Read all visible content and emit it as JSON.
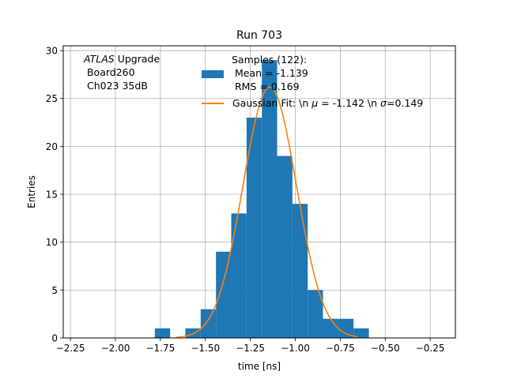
{
  "chart_data": {
    "type": "bar",
    "title": "Run 703",
    "xlabel": "time [ns]",
    "ylabel": "Entries",
    "xlim": [
      -2.29,
      -0.11
    ],
    "ylim": [
      0,
      30.5
    ],
    "xticks": [
      -2.25,
      -2.0,
      -1.75,
      -1.5,
      -1.25,
      -1.0,
      -0.75,
      -0.5,
      -0.25
    ],
    "xtick_labels": [
      "−2.25",
      "−2.00",
      "−1.75",
      "−1.50",
      "−1.25",
      "−1.00",
      "−0.75",
      "−0.50",
      "−0.25"
    ],
    "yticks": [
      0,
      5,
      10,
      15,
      20,
      25,
      30
    ],
    "ytick_labels": [
      "0",
      "5",
      "10",
      "15",
      "20",
      "25",
      "30"
    ],
    "grid": true,
    "legend_position": "upper-center",
    "annotation": {
      "lines": [
        {
          "italic": "ATLAS",
          "text": " Upgrade"
        },
        {
          "italic": "",
          "text": " Board260"
        },
        {
          "italic": "",
          "text": " Ch023 35dB"
        }
      ]
    },
    "histogram": {
      "name": "Samples (122):",
      "name_lines": [
        "Samples (122):",
        " Mean = -1.139",
        " RMS = 0.169"
      ],
      "color": "#1f77b4",
      "bin_edges": [
        -1.781,
        -1.696,
        -1.611,
        -1.526,
        -1.441,
        -1.356,
        -1.271,
        -1.186,
        -1.101,
        -1.016,
        -0.931,
        -0.846,
        -0.761,
        -0.676,
        -0.591
      ],
      "counts": [
        1,
        0,
        1,
        3,
        9,
        13,
        23,
        29,
        19,
        14,
        5,
        2,
        2,
        1
      ]
    },
    "fit": {
      "name": "Gaussian Fit: \\n $\\mu$ = -1.142 \\n $\\sigma$=0.149",
      "label_parts": [
        "Gaussian Fit: \\n ",
        "μ",
        " = -1.142 \\n ",
        "σ",
        "=0.149"
      ],
      "color": "#ff7f0e",
      "mu": -1.142,
      "sigma": 0.149,
      "amplitude": 26.2,
      "x_range": [
        -1.665,
        -0.655
      ]
    }
  }
}
